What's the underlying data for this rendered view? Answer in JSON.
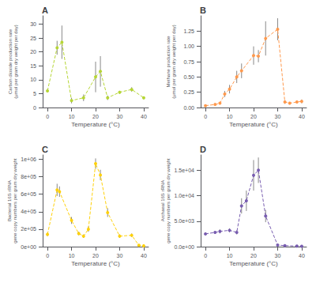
{
  "chart_data": [
    {
      "type": "line",
      "title": "A",
      "x": [
        0,
        4,
        6,
        10,
        15,
        20,
        22,
        25,
        30,
        35,
        40
      ],
      "values": [
        6.0,
        21.5,
        23.5,
        2.5,
        3.5,
        11.0,
        13.0,
        3.5,
        5.5,
        6.5,
        3.5
      ],
      "errors": [
        0.5,
        2.5,
        6.0,
        1.0,
        1.2,
        5.5,
        5.5,
        0.8,
        0.5,
        0.8,
        0.5
      ],
      "xlabel": "Temperature (°C)",
      "ylabel": "Carbon dioxide production rate\n(μmol per gram dry weight per day)",
      "xlim": [
        -2,
        42
      ],
      "xticks": [
        0,
        10,
        20,
        30,
        40
      ],
      "ylim": [
        0,
        33
      ],
      "yticks": [
        0,
        5,
        10,
        15,
        20,
        25,
        30
      ],
      "marker": "circle",
      "line_style": "dashed",
      "grid": false
    },
    {
      "type": "line",
      "title": "B",
      "x": [
        0,
        4,
        6,
        8,
        10,
        13,
        15,
        20,
        22,
        25,
        30,
        33,
        35,
        38,
        40
      ],
      "values": [
        0.03,
        0.05,
        0.07,
        0.22,
        0.3,
        0.5,
        0.6,
        0.85,
        0.84,
        1.13,
        1.28,
        0.09,
        0.07,
        0.09,
        0.1
      ],
      "errors": [
        0.02,
        0.02,
        0.02,
        0.05,
        0.07,
        0.1,
        0.12,
        0.15,
        0.1,
        0.28,
        0.18,
        0.03,
        0.02,
        0.02,
        0.03
      ],
      "xlabel": "Temperature (°C)",
      "ylabel": "Methane production rate\n(μmol per gram dry weight per day)",
      "xlim": [
        -2,
        42
      ],
      "xticks": [
        0,
        10,
        20,
        30,
        40
      ],
      "ylim": [
        0,
        1.5
      ],
      "yticks": [
        {
          "value": 0.0,
          "label": "0.00"
        },
        0.25,
        {
          "value": 0.5,
          "label": "0.50"
        },
        0.75,
        {
          "value": 1.0,
          "label": "1.00"
        },
        1.25
      ],
      "marker": "circle",
      "line_style": "dashed",
      "grid": false
    },
    {
      "type": "line",
      "title": "C",
      "x": [
        0,
        4,
        5,
        10,
        13,
        15,
        17,
        20,
        22,
        25,
        30,
        35,
        38,
        40
      ],
      "values": [
        140000,
        650000,
        630000,
        300000,
        150000,
        120000,
        200000,
        950000,
        820000,
        390000,
        120000,
        130000,
        15000,
        10000
      ],
      "errors": [
        20000,
        70000,
        60000,
        40000,
        20000,
        20000,
        30000,
        60000,
        60000,
        50000,
        20000,
        20000,
        5000,
        5000
      ],
      "xlabel": "Temperature (°C)",
      "ylabel": "Bacterial 16S rRNA\ngene copy numbers per gram dry weight",
      "xlim": [
        -2,
        42
      ],
      "xticks": [
        0,
        10,
        20,
        30,
        40
      ],
      "ylim": [
        0,
        1050000
      ],
      "yticks": [
        {
          "value": 0,
          "label": "0e+00"
        },
        {
          "value": 200000,
          "label": "2e+05"
        },
        {
          "value": 400000,
          "label": "4e+05"
        },
        {
          "value": 600000,
          "label": "6e+05"
        },
        {
          "value": 800000,
          "label": "8e+05"
        },
        {
          "value": 1000000,
          "label": "1e+06"
        }
      ],
      "marker": "circle",
      "line_style": "dashed",
      "grid": false
    },
    {
      "type": "line",
      "title": "D",
      "x": [
        0,
        4,
        6,
        10,
        13,
        15,
        17,
        20,
        22,
        25,
        30,
        33,
        38,
        40
      ],
      "values": [
        2500,
        2800,
        3000,
        3200,
        2800,
        8000,
        9000,
        14000,
        15000,
        6000,
        300,
        200,
        100,
        80
      ],
      "errors": [
        300,
        300,
        400,
        400,
        400,
        1500,
        2000,
        3000,
        2500,
        1200,
        80,
        50,
        30,
        20
      ],
      "xlabel": "Temperature (°C)",
      "ylabel": "Archaeal 16S rRNA\ngene copy numbers per gram dry weight",
      "xlim": [
        -2,
        42
      ],
      "xticks": [
        0,
        10,
        20,
        30,
        40
      ],
      "ylim": [
        0,
        18000
      ],
      "yticks": [
        {
          "value": 0,
          "label": "0.0e+00"
        },
        {
          "value": 5000,
          "label": "5.0e+03"
        },
        {
          "value": 10000,
          "label": "1.0e+04"
        },
        {
          "value": 15000,
          "label": "1.5e+04"
        }
      ],
      "marker": "circle",
      "line_style": "dashed",
      "grid": false
    }
  ]
}
